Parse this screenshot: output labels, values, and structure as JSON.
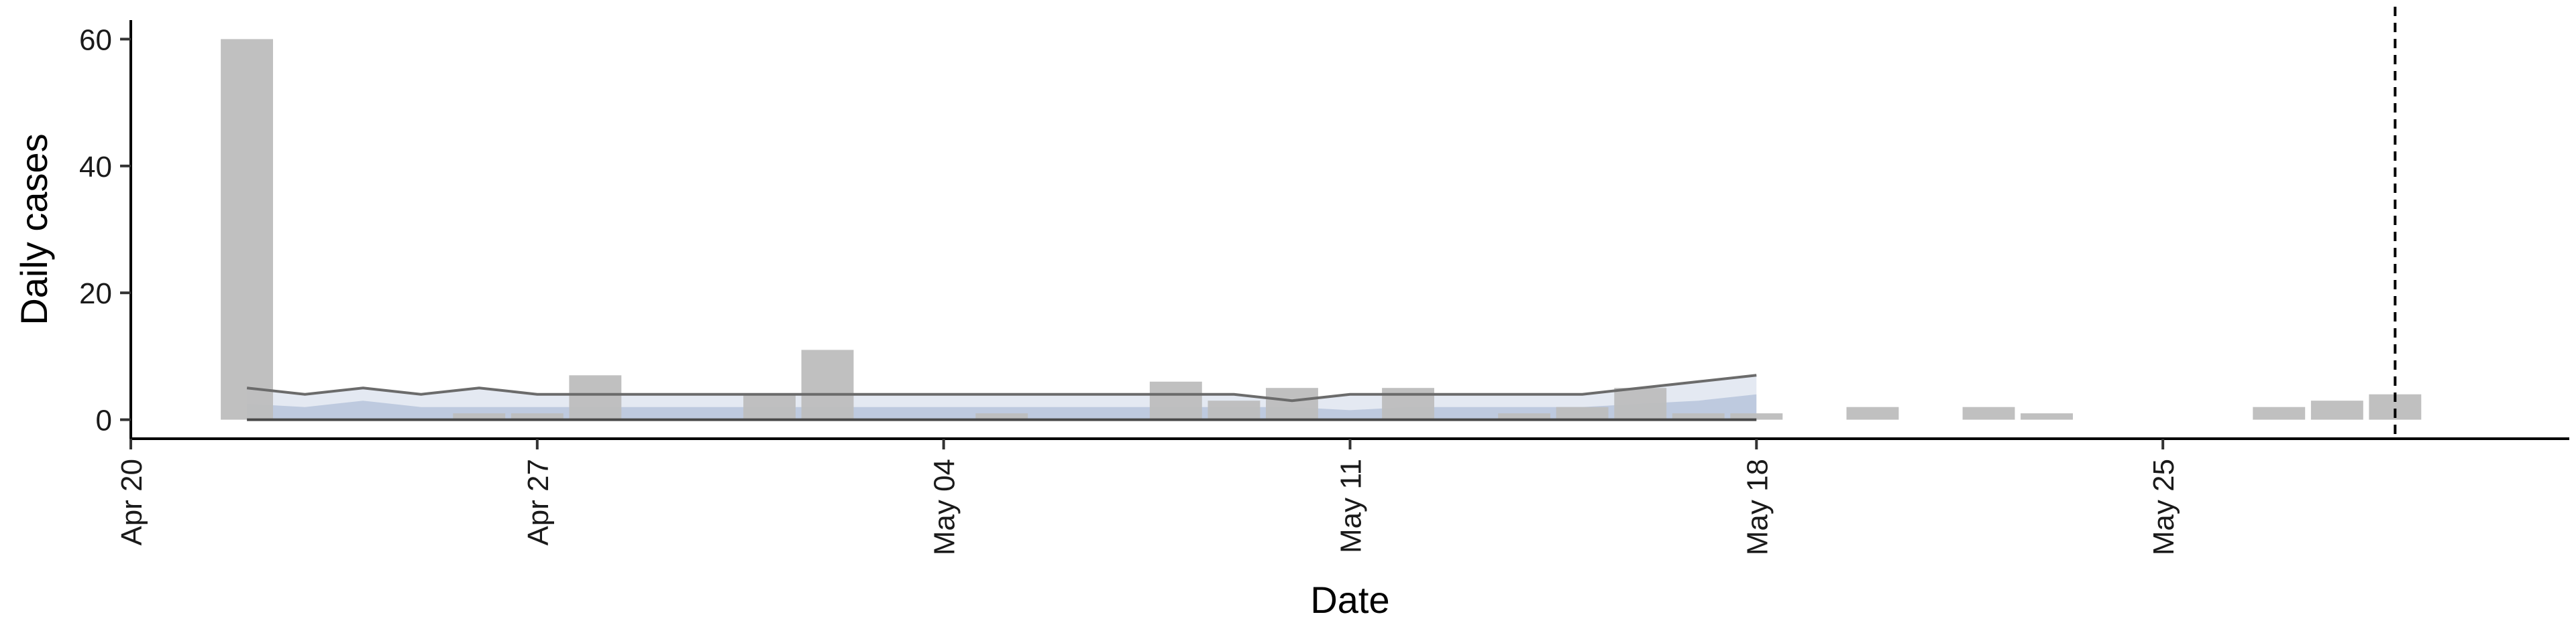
{
  "chart_data": {
    "type": "bar",
    "title": "",
    "xlabel": "Date",
    "ylabel": "Daily cases",
    "x_ticks": [
      {
        "date": "2020-04-20",
        "label": "Apr 20"
      },
      {
        "date": "2020-04-27",
        "label": "Apr 27"
      },
      {
        "date": "2020-05-04",
        "label": "May 04"
      },
      {
        "date": "2020-05-11",
        "label": "May 11"
      },
      {
        "date": "2020-05-18",
        "label": "May 18"
      },
      {
        "date": "2020-05-25",
        "label": "May 25"
      }
    ],
    "y_ticks": [
      0,
      20,
      40,
      60
    ],
    "xlim": [
      "2020-04-20",
      "2020-06-01"
    ],
    "ylim": [
      -3,
      63
    ],
    "bars": {
      "name": "",
      "color": "#bdbdbd",
      "points": [
        {
          "date": "2020-04-22",
          "value": 60
        },
        {
          "date": "2020-04-26",
          "value": 1
        },
        {
          "date": "2020-04-27",
          "value": 1
        },
        {
          "date": "2020-04-28",
          "value": 7
        },
        {
          "date": "2020-05-01",
          "value": 4
        },
        {
          "date": "2020-05-02",
          "value": 11
        },
        {
          "date": "2020-05-05",
          "value": 1
        },
        {
          "date": "2020-05-08",
          "value": 6
        },
        {
          "date": "2020-05-09",
          "value": 3
        },
        {
          "date": "2020-05-10",
          "value": 5
        },
        {
          "date": "2020-05-12",
          "value": 5
        },
        {
          "date": "2020-05-14",
          "value": 1
        },
        {
          "date": "2020-05-15",
          "value": 2
        },
        {
          "date": "2020-05-16",
          "value": 5
        },
        {
          "date": "2020-05-17",
          "value": 1
        },
        {
          "date": "2020-05-18",
          "value": 1
        },
        {
          "date": "2020-05-20",
          "value": 2
        },
        {
          "date": "2020-05-22",
          "value": 2
        },
        {
          "date": "2020-05-23",
          "value": 1
        },
        {
          "date": "2020-05-27",
          "value": 2
        },
        {
          "date": "2020-05-28",
          "value": 3
        },
        {
          "date": "2020-05-29",
          "value": 4
        }
      ]
    },
    "estimate_band": {
      "color": "#9fb0cf",
      "dates": [
        "2020-04-22",
        "2020-04-23",
        "2020-04-24",
        "2020-04-25",
        "2020-04-26",
        "2020-04-27",
        "2020-04-28",
        "2020-04-29",
        "2020-04-30",
        "2020-05-01",
        "2020-05-02",
        "2020-05-03",
        "2020-05-04",
        "2020-05-05",
        "2020-05-06",
        "2020-05-07",
        "2020-05-08",
        "2020-05-09",
        "2020-05-10",
        "2020-05-11",
        "2020-05-12",
        "2020-05-13",
        "2020-05-14",
        "2020-05-15",
        "2020-05-16",
        "2020-05-17",
        "2020-05-18"
      ],
      "upper": [
        5,
        4,
        5,
        4,
        5,
        4,
        4,
        4,
        4,
        4,
        4,
        4,
        4,
        4,
        4,
        4,
        4,
        4,
        3,
        4,
        4,
        4,
        4,
        4,
        5,
        6,
        7
      ],
      "inner_upper": [
        2.5,
        2,
        3,
        2,
        2,
        2,
        2,
        2,
        2,
        2,
        2,
        2,
        2,
        2,
        2,
        2,
        2,
        2,
        2,
        1.5,
        2,
        2,
        2,
        2,
        2.5,
        3,
        4
      ],
      "lower": [
        0,
        0,
        0,
        0,
        0,
        0,
        0,
        0,
        0,
        0,
        0,
        0,
        0,
        0,
        0,
        0,
        0,
        0,
        0,
        0,
        0,
        0,
        0,
        0,
        0,
        0,
        0
      ]
    },
    "reference_line": {
      "date": "2020-05-29",
      "style": "dashed"
    },
    "grid": false,
    "legend": "none"
  }
}
